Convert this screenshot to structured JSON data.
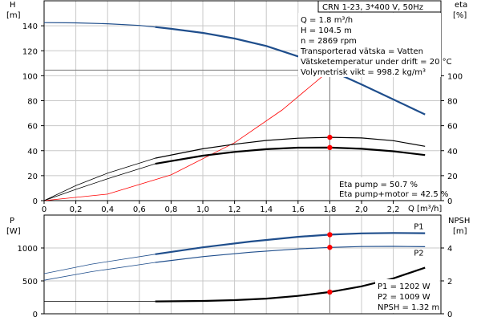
{
  "header": {
    "title": "CRN 1-23, 3*400 V, 50Hz"
  },
  "info_box": {
    "lines": [
      "Q = 1.8 m³/h",
      "H = 104.5 m",
      "n = 2869 rpm",
      "Transporterad vätska = Vatten",
      "Vätsketemperatur under drift = 20 °C",
      "Volymetrisk vikt = 998.2 kg/m³"
    ]
  },
  "eta_box": {
    "lines": [
      "Eta pump = 50.7 %",
      "Eta pump+motor = 42.5 %"
    ]
  },
  "power_box": {
    "lines": [
      "P1 = 1202 W",
      "P2 = 1009 W",
      "NPSH = 1.32 m"
    ]
  },
  "colors": {
    "head": "#1f4e8c",
    "power": "#1f4e8c",
    "eta": "#000000",
    "system": "#ff0000",
    "duty": "#ff0000",
    "duty_head": "#ffc000"
  },
  "chart_data": [
    {
      "type": "line",
      "name": "upper-panel",
      "xlabel": "Q [m³/h]",
      "ylabel_left": "H [m]",
      "ylabel_right": "eta [%]",
      "xlim": [
        0,
        2.5
      ],
      "ylim_left": [
        0,
        160
      ],
      "ylim_right": [
        0,
        160
      ],
      "x_ticks": [
        0,
        0.2,
        0.4,
        0.6,
        0.8,
        1.0,
        1.2,
        1.4,
        1.6,
        1.8,
        2.0,
        2.2
      ],
      "x_tick_labels": [
        "0",
        "0,2",
        "0,4",
        "0,6",
        "0,8",
        "1,0",
        "1,2",
        "1,4",
        "1,6",
        "1,8",
        "2,0",
        "2,2"
      ],
      "y_left_ticks": [
        0,
        20,
        40,
        60,
        80,
        100,
        120,
        140
      ],
      "y_right_ticks": [
        0,
        20,
        40,
        60,
        80,
        100
      ],
      "grid": true,
      "series": [
        {
          "role": "head",
          "x": [
            0,
            0.2,
            0.4,
            0.6,
            0.7,
            0.8,
            1.0,
            1.2,
            1.4,
            1.6,
            1.8,
            2.0,
            2.2,
            2.4
          ],
          "y": [
            142.5,
            142.3,
            141.6,
            140.3,
            139.0,
            137.6,
            134.3,
            129.8,
            123.8,
            115.5,
            104.5,
            93.0,
            81.0,
            69.0
          ]
        },
        {
          "role": "eta-pump-motor",
          "x": [
            0,
            0.2,
            0.4,
            0.7,
            1.0,
            1.2,
            1.4,
            1.6,
            1.8,
            2.0,
            2.2,
            2.4
          ],
          "y": [
            0,
            9,
            17.5,
            29.5,
            36,
            39,
            41.2,
            42.4,
            42.5,
            41.5,
            39.5,
            36.5
          ]
        },
        {
          "role": "eta-pump",
          "x": [
            0,
            0.2,
            0.4,
            0.7,
            1.0,
            1.2,
            1.4,
            1.6,
            1.8,
            2.0,
            2.2,
            2.4
          ],
          "y": [
            0,
            12,
            22,
            34,
            41.5,
            45.2,
            48.2,
            50.0,
            50.7,
            50.2,
            48.0,
            43.5
          ]
        },
        {
          "role": "system",
          "x": [
            0,
            0.4,
            0.8,
            1.2,
            1.5,
            1.8
          ],
          "y": [
            0,
            5.2,
            20.6,
            46.4,
            72.6,
            104.5
          ]
        }
      ],
      "duty_point": {
        "x": 1.8,
        "head": 104.5,
        "eta_pump": 50.7,
        "eta_pump_motor": 42.5
      }
    },
    {
      "type": "line",
      "name": "lower-panel",
      "ylabel_left": "P [W]",
      "ylabel_right": "NPSH [m]",
      "xlim": [
        0,
        2.5
      ],
      "ylim_left": [
        0,
        1500
      ],
      "ylim_right": [
        0,
        6
      ],
      "y_left_ticks": [
        0,
        500,
        1000
      ],
      "y_right_ticks": [
        0,
        2,
        4
      ],
      "grid": true,
      "series": [
        {
          "name": "P1",
          "x": [
            0,
            0.3,
            0.7,
            1.0,
            1.3,
            1.6,
            1.8,
            2.0,
            2.2,
            2.4
          ],
          "y": [
            610,
            755,
            905,
            1010,
            1098,
            1170,
            1202,
            1222,
            1228,
            1225
          ]
        },
        {
          "name": "P2",
          "x": [
            0,
            0.3,
            0.7,
            1.0,
            1.3,
            1.6,
            1.8,
            2.0,
            2.2,
            2.4
          ],
          "y": [
            510,
            640,
            780,
            868,
            935,
            985,
            1009,
            1022,
            1024,
            1020
          ]
        },
        {
          "role": "npsh",
          "x": [
            0,
            0.7,
            1.0,
            1.2,
            1.4,
            1.6,
            1.8,
            2.0,
            2.2,
            2.4
          ],
          "y": [
            0.75,
            0.75,
            0.78,
            0.83,
            0.92,
            1.09,
            1.32,
            1.67,
            2.15,
            2.8
          ]
        }
      ],
      "duty_point": {
        "x": 1.8,
        "p1": 1202,
        "p2": 1009,
        "npsh": 1.32
      }
    }
  ]
}
